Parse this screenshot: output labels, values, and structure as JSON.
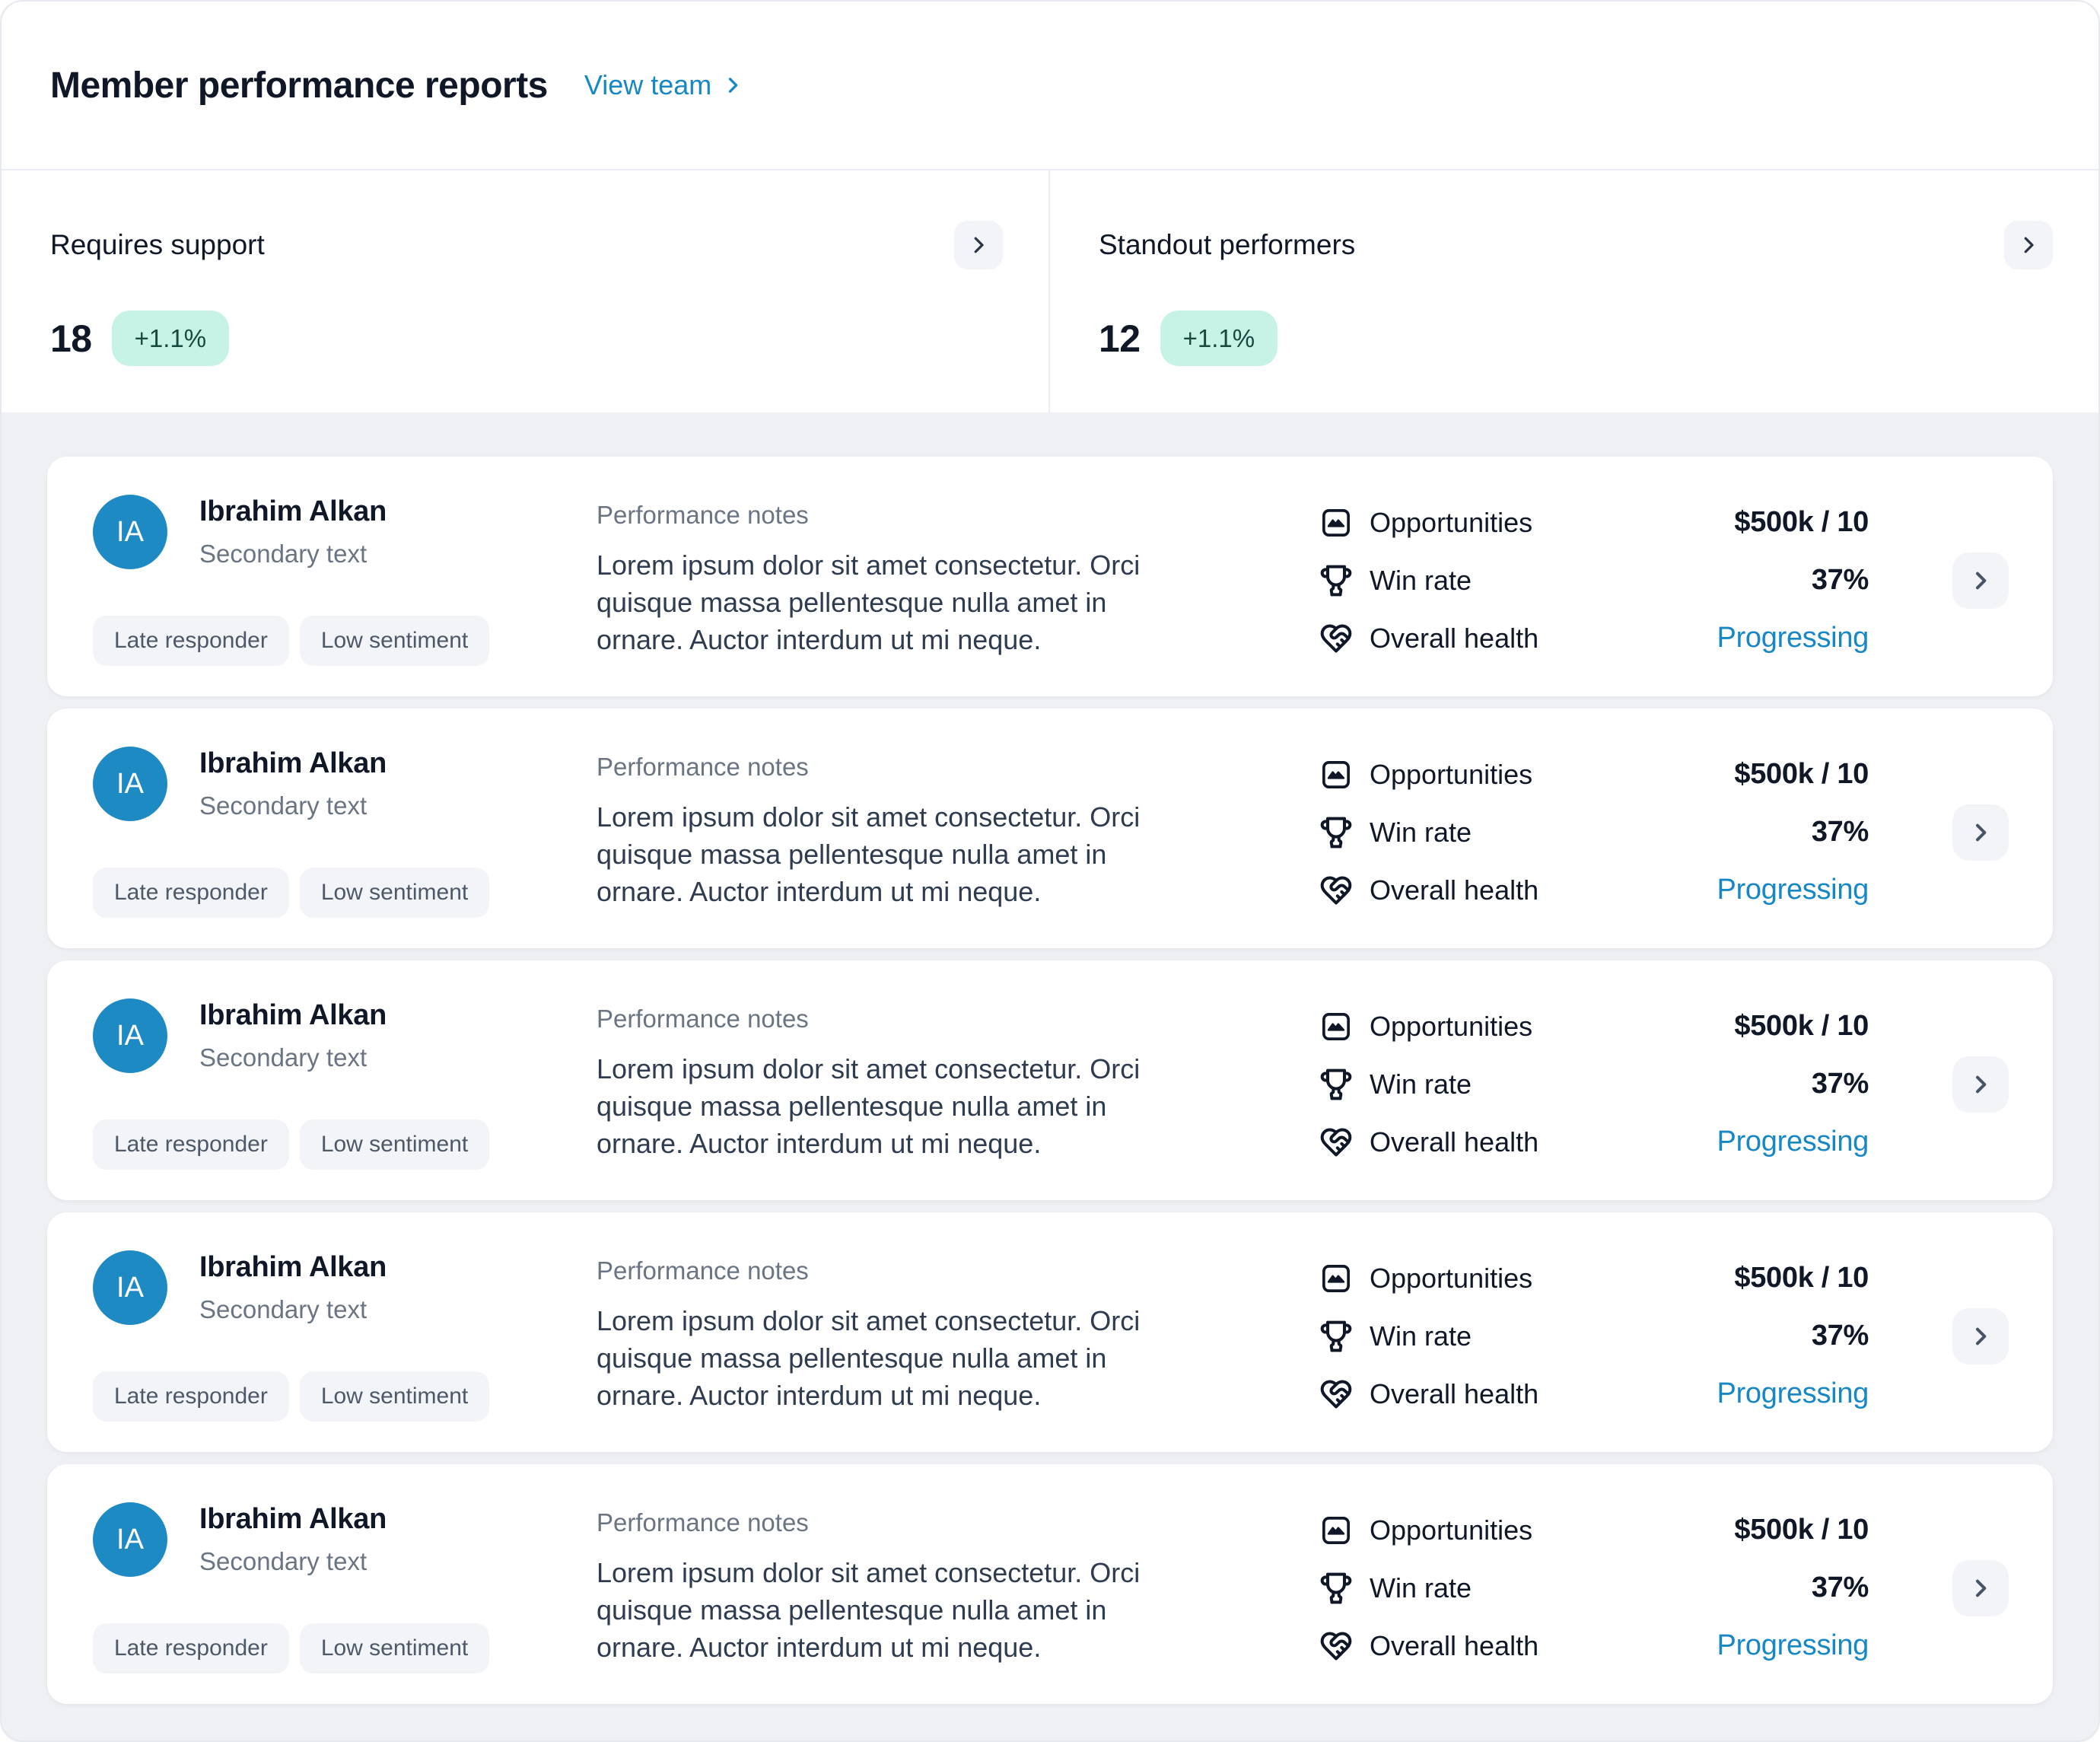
{
  "header": {
    "title": "Member performance reports",
    "view_team_label": "View team"
  },
  "summary_cards": [
    {
      "title": "Requires support",
      "count": "18",
      "delta": "+1.1%"
    },
    {
      "title": "Standout performers",
      "count": "12",
      "delta": "+1.1%"
    }
  ],
  "members": [
    {
      "initials": "IA",
      "name": "Ibrahim Alkan",
      "secondary": "Secondary text",
      "tags": [
        "Late responder",
        "Low sentiment"
      ],
      "notes_label": "Performance notes",
      "notes": "Lorem ipsum dolor sit amet consectetur. Orci quisque massa pellentesque nulla amet in ornare. Auctor interdum ut mi neque.",
      "stats": [
        {
          "icon": "opportunities-icon",
          "label": "Opportunities",
          "value": "$500k / 10"
        },
        {
          "icon": "win-rate-icon",
          "label": "Win rate",
          "value": "37%"
        },
        {
          "icon": "overall-health-icon",
          "label": "Overall health",
          "value": "Progressing"
        }
      ]
    },
    {
      "initials": "IA",
      "name": "Ibrahim Alkan",
      "secondary": "Secondary text",
      "tags": [
        "Late responder",
        "Low sentiment"
      ],
      "notes_label": "Performance notes",
      "notes": "Lorem ipsum dolor sit amet consectetur. Orci quisque massa pellentesque nulla amet in ornare. Auctor interdum ut mi neque.",
      "stats": [
        {
          "icon": "opportunities-icon",
          "label": "Opportunities",
          "value": "$500k / 10"
        },
        {
          "icon": "win-rate-icon",
          "label": "Win rate",
          "value": "37%"
        },
        {
          "icon": "overall-health-icon",
          "label": "Overall health",
          "value": "Progressing"
        }
      ]
    },
    {
      "initials": "IA",
      "name": "Ibrahim Alkan",
      "secondary": "Secondary text",
      "tags": [
        "Late responder",
        "Low sentiment"
      ],
      "notes_label": "Performance notes",
      "notes": "Lorem ipsum dolor sit amet consectetur. Orci quisque massa pellentesque nulla amet in ornare. Auctor interdum ut mi neque.",
      "stats": [
        {
          "icon": "opportunities-icon",
          "label": "Opportunities",
          "value": "$500k / 10"
        },
        {
          "icon": "win-rate-icon",
          "label": "Win rate",
          "value": "37%"
        },
        {
          "icon": "overall-health-icon",
          "label": "Overall health",
          "value": "Progressing"
        }
      ]
    },
    {
      "initials": "IA",
      "name": "Ibrahim Alkan",
      "secondary": "Secondary text",
      "tags": [
        "Late responder",
        "Low sentiment"
      ],
      "notes_label": "Performance notes",
      "notes": "Lorem ipsum dolor sit amet consectetur. Orci quisque massa pellentesque nulla amet in ornare. Auctor interdum ut mi neque.",
      "stats": [
        {
          "icon": "opportunities-icon",
          "label": "Opportunities",
          "value": "$500k / 10"
        },
        {
          "icon": "win-rate-icon",
          "label": "Win rate",
          "value": "37%"
        },
        {
          "icon": "overall-health-icon",
          "label": "Overall health",
          "value": "Progressing"
        }
      ]
    },
    {
      "initials": "IA",
      "name": "Ibrahim Alkan",
      "secondary": "Secondary text",
      "tags": [
        "Late responder",
        "Low sentiment"
      ],
      "notes_label": "Performance notes",
      "notes": "Lorem ipsum dolor sit amet consectetur. Orci quisque massa pellentesque nulla amet in ornare. Auctor interdum ut mi neque.",
      "stats": [
        {
          "icon": "opportunities-icon",
          "label": "Opportunities",
          "value": "$500k / 10"
        },
        {
          "icon": "win-rate-icon",
          "label": "Win rate",
          "value": "37%"
        },
        {
          "icon": "overall-health-icon",
          "label": "Overall health",
          "value": "Progressing"
        }
      ]
    }
  ],
  "icons": {
    "view_team": "chevron-right-icon",
    "summary_nav": "chevron-right-icon",
    "member_nav": "chevron-right-icon",
    "opportunities": "opportunities-icon",
    "win_rate": "win-rate-icon",
    "overall_health": "overall-health-icon"
  },
  "colors": {
    "accent_blue": "#1787c5",
    "avatar_blue": "#1e8ac4",
    "badge_bg": "#c7f2e6",
    "badge_text": "#17493f",
    "card_bg": "#ffffff",
    "section_bg": "#eef0f4",
    "text_dark": "#101828",
    "text_gray": "#6b7482"
  }
}
